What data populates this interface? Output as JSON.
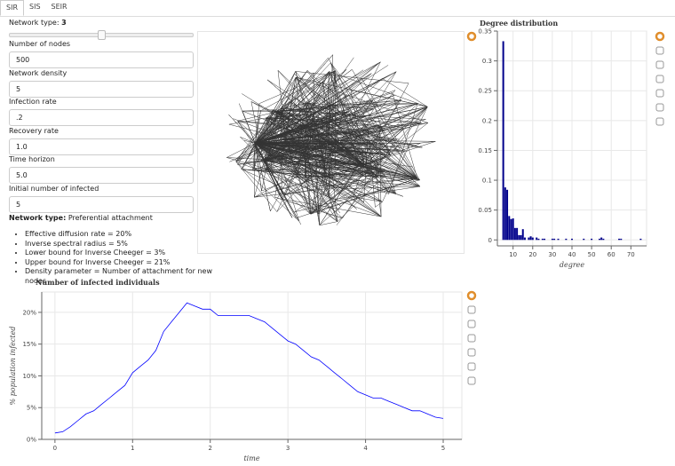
{
  "tabs": [
    "SIR",
    "SIS",
    "SEIR"
  ],
  "slider": {
    "label": "Network type:",
    "value": 3
  },
  "controls": [
    {
      "label": "Number of nodes",
      "value": "500"
    },
    {
      "label": "Network density",
      "value": "5"
    },
    {
      "label": "Infection rate",
      "value": ".2"
    },
    {
      "label": "Recovery rate",
      "value": "1.0"
    },
    {
      "label": "Time horizon",
      "value": "5.0"
    },
    {
      "label": "Initial number of infected",
      "value": "5"
    }
  ],
  "network_type": {
    "label": "Network type:",
    "value": "Preferential attachment"
  },
  "stats": [
    "Effective diffusion rate = 20%",
    "Inverse spectral radius = 5%",
    "Lower bound for Inverse Cheeger = 3%",
    "Upper bound for Inverse Cheeger = 21%",
    "Density parameter = Number of attachment for new nodes"
  ],
  "chart_data": [
    {
      "type": "bar",
      "title": "Degree distribution",
      "x_label": "degree",
      "x": [
        5,
        6,
        7,
        8,
        9,
        10,
        11,
        12,
        13,
        14,
        15,
        16,
        18,
        19,
        20,
        22,
        23,
        25,
        26,
        30,
        31,
        33,
        37,
        40,
        46,
        50,
        54,
        55,
        56,
        64,
        65,
        75
      ],
      "values": [
        0.333,
        0.088,
        0.084,
        0.04,
        0.035,
        0.036,
        0.02,
        0.02,
        0.008,
        0.008,
        0.018,
        0.004,
        0.004,
        0.006,
        0.004,
        0.004,
        0.002,
        0.002,
        0.002,
        0.002,
        0.002,
        0.002,
        0.002,
        0.002,
        0.002,
        0.002,
        0.002,
        0.004,
        0.002,
        0.002,
        0.002,
        0.002
      ],
      "color": "#00008b",
      "xlim": [
        2,
        78
      ],
      "ylim": [
        -0.01,
        0.35
      ],
      "xticks": [
        10,
        20,
        30,
        40,
        50,
        60,
        70
      ],
      "yticks": [
        0,
        0.05,
        0.1,
        0.15,
        0.2,
        0.25,
        0.3,
        0.35
      ],
      "grid": true
    },
    {
      "type": "line",
      "title": "Number of infected individuals",
      "x_label": "time",
      "y_label": "% population infected",
      "x": [
        0,
        0.1,
        0.2,
        0.3,
        0.4,
        0.5,
        0.6,
        0.7,
        0.8,
        0.9,
        1.0,
        1.1,
        1.2,
        1.3,
        1.4,
        1.5,
        1.6,
        1.7,
        1.8,
        1.9,
        2.0,
        2.1,
        2.2,
        2.3,
        2.4,
        2.5,
        2.6,
        2.7,
        2.8,
        2.9,
        3.0,
        3.1,
        3.2,
        3.3,
        3.4,
        3.5,
        3.6,
        3.7,
        3.8,
        3.9,
        4.0,
        4.1,
        4.2,
        4.3,
        4.4,
        4.5,
        4.6,
        4.7,
        4.8,
        4.9,
        5.0
      ],
      "values": [
        1,
        1.2,
        2,
        3,
        4,
        4.5,
        5.5,
        6.5,
        7.5,
        8.5,
        10.5,
        11.5,
        12.5,
        14,
        17,
        18.5,
        20,
        21.5,
        21,
        20.5,
        20.5,
        19.5,
        19.5,
        19.5,
        19.5,
        19.5,
        19,
        18.5,
        17.5,
        16.5,
        15.5,
        15,
        14,
        13,
        12.5,
        11.5,
        10.5,
        9.5,
        8.5,
        7.5,
        7,
        6.5,
        6.5,
        6,
        5.5,
        5,
        4.5,
        4.5,
        4,
        3.5,
        3.3
      ],
      "color": "#0000ff",
      "xlim": [
        -0.17,
        5.24
      ],
      "ylim": [
        0,
        23.2
      ],
      "xticks": [
        0,
        1,
        2,
        3,
        4,
        5
      ],
      "yticks": [
        {
          "value": 0,
          "label": "0%"
        },
        {
          "value": 5,
          "label": "5%"
        },
        {
          "value": 10,
          "label": "10%"
        },
        {
          "value": 15,
          "label": "15%"
        },
        {
          "value": 20,
          "label": "20%"
        }
      ],
      "grid": true
    }
  ]
}
